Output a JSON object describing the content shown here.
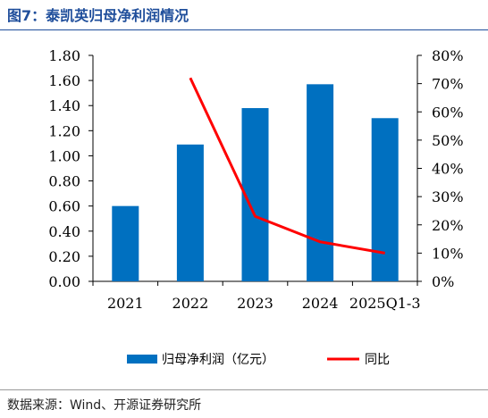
{
  "figure": {
    "title": "图7：泰凯英归母净利润情况",
    "source": "数据来源：Wind、开源证券研究所"
  },
  "colors": {
    "bar": "#0070c0",
    "line": "#ff0000",
    "axis": "#000000",
    "title": "#1f4e9b"
  },
  "chart_data": {
    "type": "bar",
    "title": "",
    "xlabel": "",
    "ylabel": "",
    "categories": [
      "2021",
      "2022",
      "2023",
      "2024",
      "2025Q1-3"
    ],
    "series": [
      {
        "name": "归母净利润（亿元）",
        "type": "bar",
        "axis": "left",
        "values": [
          0.6,
          1.09,
          1.38,
          1.57,
          1.3
        ]
      },
      {
        "name": "同比",
        "type": "line",
        "axis": "right",
        "values": [
          null,
          72,
          23,
          14,
          10
        ]
      }
    ],
    "ylim": [
      0,
      1.8
    ],
    "yticks": [
      "0.00",
      "0.20",
      "0.40",
      "0.60",
      "0.80",
      "1.00",
      "1.20",
      "1.40",
      "1.60",
      "1.80"
    ],
    "y2lim": [
      0,
      80
    ],
    "y2ticks": [
      "0%",
      "10%",
      "20%",
      "30%",
      "40%",
      "50%",
      "60%",
      "70%",
      "80%"
    ],
    "grid": false,
    "legend": "bottom"
  }
}
